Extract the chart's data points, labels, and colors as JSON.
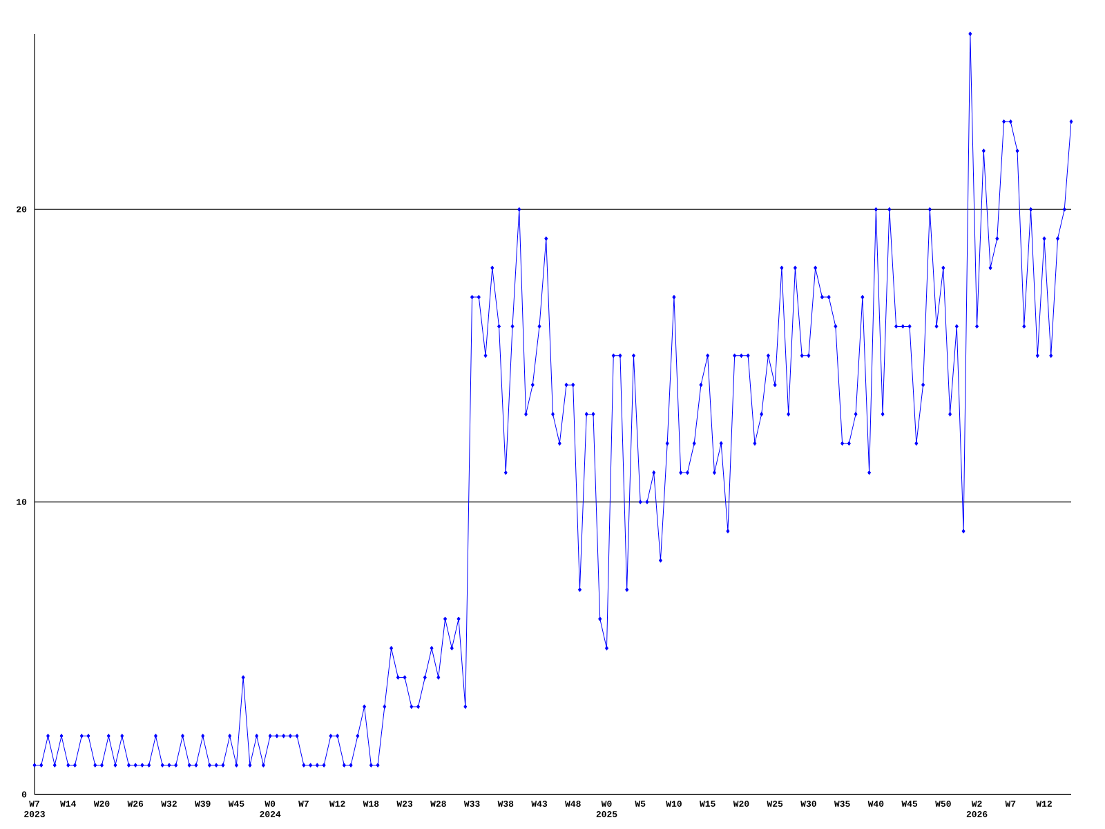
{
  "chart_data": {
    "type": "line",
    "categories": [
      "W7 2023",
      null,
      null,
      null,
      null,
      "W14",
      null,
      null,
      null,
      null,
      "W20",
      null,
      null,
      null,
      null,
      "W26",
      null,
      null,
      null,
      null,
      "W32",
      null,
      null,
      null,
      null,
      "W39",
      null,
      null,
      null,
      null,
      "W45",
      null,
      null,
      null,
      null,
      "W0 2024",
      null,
      null,
      null,
      null,
      "W7",
      null,
      null,
      null,
      null,
      "W12",
      null,
      null,
      null,
      null,
      "W18",
      null,
      null,
      null,
      null,
      "W23",
      null,
      null,
      null,
      null,
      "W28",
      null,
      null,
      null,
      null,
      "W33",
      null,
      null,
      null,
      null,
      "W38",
      null,
      null,
      null,
      null,
      "W43",
      null,
      null,
      null,
      null,
      "W48",
      null,
      null,
      null,
      null,
      "W0 2025",
      null,
      null,
      null,
      null,
      "W5",
      null,
      null,
      null,
      null,
      "W10",
      null,
      null,
      null,
      null,
      "W15",
      null,
      null,
      null,
      null,
      "W20",
      null,
      null,
      null,
      null,
      "W25",
      null,
      null,
      null,
      null,
      "W30",
      null,
      null,
      null,
      null,
      "W35",
      null,
      null,
      null,
      null,
      "W40",
      null,
      null,
      null,
      null,
      "W45",
      null,
      null,
      null,
      null,
      "W50",
      null,
      null,
      null,
      null,
      "W2 2026",
      null,
      null,
      null,
      null,
      "W7",
      null,
      null,
      null,
      null,
      "W12",
      null,
      null,
      null,
      null
    ],
    "values": [
      1,
      1,
      2,
      1,
      2,
      1,
      1,
      2,
      2,
      1,
      1,
      2,
      1,
      2,
      1,
      1,
      1,
      1,
      2,
      1,
      1,
      1,
      2,
      1,
      1,
      2,
      1,
      1,
      1,
      2,
      1,
      4,
      1,
      2,
      1,
      2,
      2,
      2,
      2,
      2,
      1,
      1,
      1,
      1,
      2,
      2,
      1,
      1,
      2,
      3,
      1,
      1,
      3,
      5,
      4,
      4,
      3,
      3,
      4,
      5,
      4,
      6,
      5,
      6,
      3,
      17,
      17,
      15,
      18,
      16,
      11,
      16,
      20,
      13,
      14,
      16,
      19,
      13,
      12,
      14,
      14,
      7,
      13,
      13,
      6,
      5,
      15,
      15,
      7,
      15,
      10,
      10,
      11,
      8,
      12,
      17,
      11,
      11,
      12,
      14,
      15,
      11,
      12,
      9,
      15,
      15,
      15,
      12,
      13,
      15,
      14,
      18,
      13,
      18,
      15,
      15,
      18,
      17,
      17,
      16,
      12,
      12,
      13,
      17,
      11,
      20,
      13,
      20,
      16,
      16,
      16,
      12,
      14,
      20,
      16,
      18,
      13,
      16,
      9,
      26,
      16,
      22,
      18,
      19,
      23,
      23,
      22,
      16,
      20,
      15,
      19,
      15,
      19,
      20,
      23
    ],
    "color": "#0000ff",
    "marker": "diamond",
    "ylim": [
      0,
      26
    ],
    "yticks": [
      0,
      10,
      20
    ],
    "grid": "y"
  }
}
